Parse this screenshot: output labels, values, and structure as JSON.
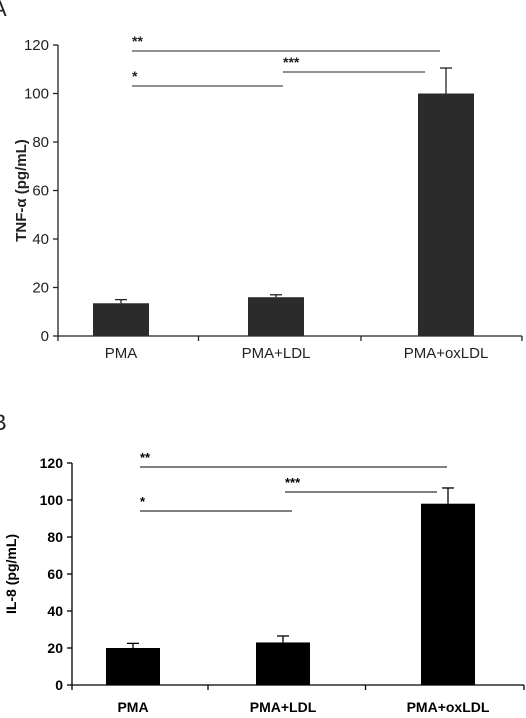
{
  "chart_data": [
    {
      "panel": "A",
      "type": "bar",
      "categories": [
        "PMA",
        "PMA+LDL",
        "PMA+oxLDL"
      ],
      "values": [
        13.5,
        16,
        100
      ],
      "errors": [
        1.5,
        1,
        10.5
      ],
      "ylabel": "TNF-α (pg/mL)",
      "ylim": [
        0,
        120
      ],
      "yticks": [
        "0",
        "20",
        "40",
        "60",
        "80",
        "100",
        "120"
      ],
      "bar_color": "#2b2b2b",
      "significance": [
        {
          "from": 0,
          "to": 2,
          "label": "**"
        },
        {
          "from": 0,
          "to": 1,
          "label": "*"
        },
        {
          "from": 1,
          "to": 2,
          "label": "***"
        }
      ]
    },
    {
      "panel": "B",
      "type": "bar",
      "categories": [
        "PMA",
        "PMA+LDL",
        "PMA+oxLDL"
      ],
      "values": [
        20,
        23,
        98
      ],
      "errors": [
        2.5,
        3.5,
        8.5
      ],
      "ylabel": "IL-8 (pg/mL)",
      "ylim": [
        0,
        120
      ],
      "yticks": [
        "0",
        "20",
        "40",
        "60",
        "80",
        "100",
        "120"
      ],
      "bar_color": "#000000",
      "significance": [
        {
          "from": 0,
          "to": 2,
          "label": "**"
        },
        {
          "from": 0,
          "to": 1,
          "label": "*"
        },
        {
          "from": 1,
          "to": 2,
          "label": "***"
        }
      ]
    }
  ]
}
